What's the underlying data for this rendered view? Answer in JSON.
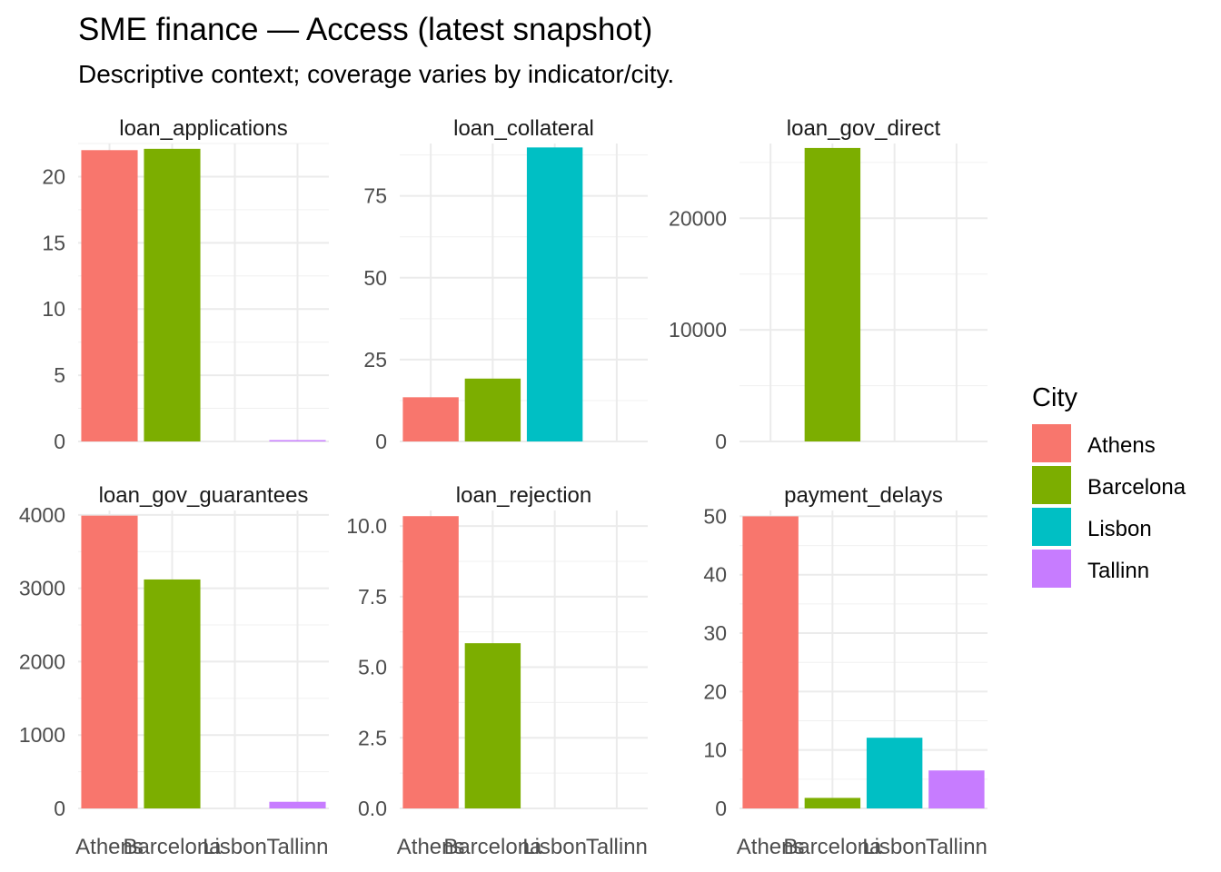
{
  "title": "SME finance — Access (latest snapshot)",
  "subtitle": "Descriptive context; coverage varies by indicator/city.",
  "legend": {
    "title": "City",
    "position": "right",
    "items": [
      {
        "label": "Athens",
        "color": "#F8766D"
      },
      {
        "label": "Barcelona",
        "color": "#7CAE00"
      },
      {
        "label": "Lisbon",
        "color": "#00BFC4"
      },
      {
        "label": "Tallinn",
        "color": "#C77CFF"
      }
    ]
  },
  "chart_data": [
    {
      "type": "bar",
      "title": "loan_applications",
      "categories": [
        "Athens",
        "Barcelona",
        "Lisbon",
        "Tallinn"
      ],
      "values": [
        22.0,
        22.1,
        null,
        0.1
      ],
      "ylim": [
        0,
        22.5
      ],
      "yticks": [
        0,
        5,
        10,
        15,
        20
      ],
      "ytick_labels": [
        "0",
        "5",
        "10",
        "15",
        "20"
      ],
      "grid": true
    },
    {
      "type": "bar",
      "title": "loan_collateral",
      "categories": [
        "Athens",
        "Barcelona",
        "Lisbon",
        "Tallinn"
      ],
      "values": [
        13.5,
        19.2,
        89.8,
        null
      ],
      "ylim": [
        0,
        91
      ],
      "yticks": [
        0,
        25,
        50,
        75
      ],
      "ytick_labels": [
        "0",
        "25",
        "50",
        "75"
      ],
      "grid": true
    },
    {
      "type": "bar",
      "title": "loan_gov_direct",
      "categories": [
        "Athens",
        "Barcelona",
        "Lisbon",
        "Tallinn"
      ],
      "values": [
        null,
        26300,
        null,
        null
      ],
      "ylim": [
        0,
        26700
      ],
      "yticks": [
        0,
        10000,
        20000
      ],
      "ytick_labels": [
        "0",
        "10000",
        "20000"
      ],
      "grid": true
    },
    {
      "type": "bar",
      "title": "loan_gov_guarantees",
      "categories": [
        "Athens",
        "Barcelona",
        "Lisbon",
        "Tallinn"
      ],
      "values": [
        3990,
        3120,
        null,
        90
      ],
      "ylim": [
        0,
        4060
      ],
      "yticks": [
        0,
        1000,
        2000,
        3000,
        4000
      ],
      "ytick_labels": [
        "0",
        "1000",
        "2000",
        "3000",
        "4000"
      ],
      "grid": true
    },
    {
      "type": "bar",
      "title": "loan_rejection",
      "categories": [
        "Athens",
        "Barcelona",
        "Lisbon",
        "Tallinn"
      ],
      "values": [
        10.35,
        5.85,
        null,
        null
      ],
      "ylim": [
        0,
        10.55
      ],
      "yticks": [
        0,
        2.5,
        5,
        7.5,
        10
      ],
      "ytick_labels": [
        "0.0",
        "2.5",
        "5.0",
        "7.5",
        "10.0"
      ],
      "grid": true
    },
    {
      "type": "bar",
      "title": "payment_delays",
      "categories": [
        "Athens",
        "Barcelona",
        "Lisbon",
        "Tallinn"
      ],
      "values": [
        50.0,
        1.8,
        12.1,
        6.5
      ],
      "ylim": [
        0,
        51
      ],
      "yticks": [
        0,
        10,
        20,
        30,
        40,
        50
      ],
      "ytick_labels": [
        "0",
        "10",
        "20",
        "30",
        "40",
        "50"
      ],
      "grid": true
    }
  ]
}
